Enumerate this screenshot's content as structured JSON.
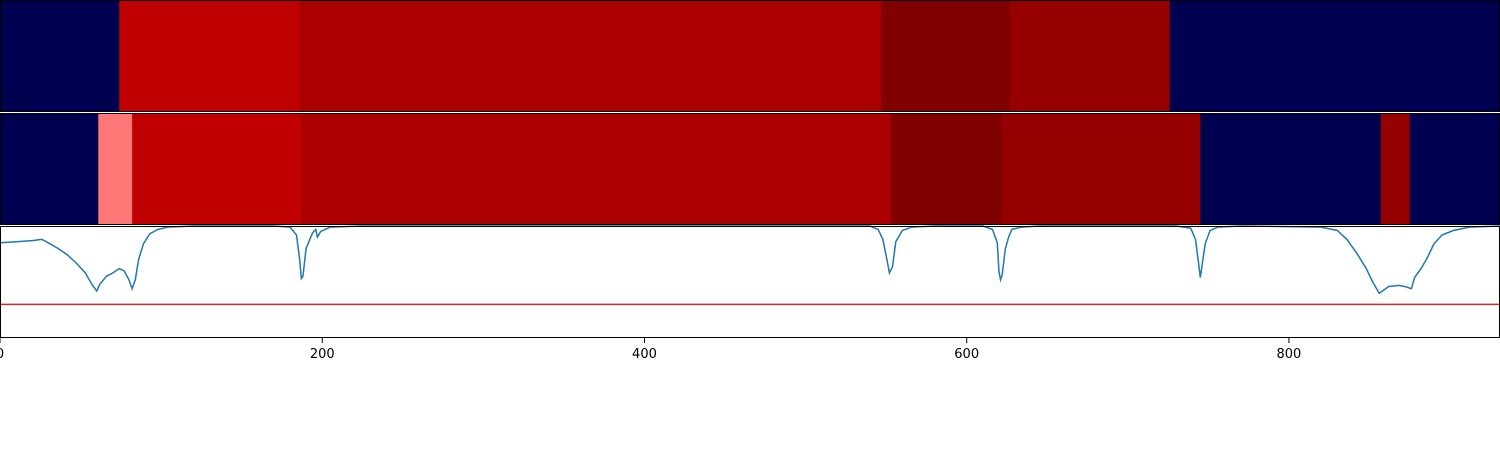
{
  "chart_data": {
    "type": "segmentation-timeline",
    "x_range": [
      0,
      931
    ],
    "x_ticks": [
      0,
      200,
      400,
      600,
      800
    ],
    "tracks": [
      {
        "segments": [
          {
            "start": 0,
            "end": 74,
            "color": "#000050"
          },
          {
            "start": 74,
            "end": 186,
            "color": "#c00000"
          },
          {
            "start": 186,
            "end": 547,
            "color": "#aa0000"
          },
          {
            "start": 547,
            "end": 627,
            "color": "#800000"
          },
          {
            "start": 627,
            "end": 726,
            "color": "#950000"
          },
          {
            "start": 726,
            "end": 931,
            "color": "#000050"
          }
        ]
      },
      {
        "segments": [
          {
            "start": 0,
            "end": 61,
            "color": "#000050"
          },
          {
            "start": 61,
            "end": 82,
            "color": "#ff7878"
          },
          {
            "start": 82,
            "end": 187,
            "color": "#c00000"
          },
          {
            "start": 187,
            "end": 553,
            "color": "#aa0000"
          },
          {
            "start": 553,
            "end": 622,
            "color": "#800000"
          },
          {
            "start": 622,
            "end": 745,
            "color": "#950000"
          },
          {
            "start": 745,
            "end": 857,
            "color": "#000050"
          },
          {
            "start": 857,
            "end": 875,
            "color": "#950000"
          },
          {
            "start": 875,
            "end": 931,
            "color": "#000050"
          }
        ]
      }
    ],
    "curve": {
      "y_range": [
        0,
        1
      ],
      "threshold": 0.3,
      "line_color": "#1f77b4",
      "threshold_color": "#d62728",
      "points": [
        [
          0,
          0.85
        ],
        [
          10,
          0.86
        ],
        [
          20,
          0.87
        ],
        [
          26,
          0.88
        ],
        [
          30,
          0.85
        ],
        [
          36,
          0.8
        ],
        [
          42,
          0.74
        ],
        [
          48,
          0.66
        ],
        [
          53,
          0.58
        ],
        [
          57,
          0.48
        ],
        [
          60,
          0.42
        ],
        [
          62,
          0.48
        ],
        [
          66,
          0.55
        ],
        [
          70,
          0.58
        ],
        [
          74,
          0.62
        ],
        [
          77,
          0.6
        ],
        [
          80,
          0.52
        ],
        [
          82,
          0.44
        ],
        [
          84,
          0.52
        ],
        [
          86,
          0.7
        ],
        [
          89,
          0.84
        ],
        [
          93,
          0.93
        ],
        [
          98,
          0.97
        ],
        [
          104,
          0.99
        ],
        [
          120,
          1.0
        ],
        [
          170,
          1.0
        ],
        [
          180,
          0.99
        ],
        [
          184,
          0.92
        ],
        [
          186,
          0.7
        ],
        [
          187,
          0.53
        ],
        [
          188,
          0.55
        ],
        [
          190,
          0.8
        ],
        [
          194,
          0.94
        ],
        [
          196,
          0.97
        ],
        [
          197,
          0.9
        ],
        [
          199,
          0.95
        ],
        [
          205,
          0.99
        ],
        [
          225,
          1.0
        ],
        [
          540,
          1.0
        ],
        [
          545,
          0.97
        ],
        [
          548,
          0.88
        ],
        [
          551,
          0.66
        ],
        [
          552,
          0.58
        ],
        [
          554,
          0.64
        ],
        [
          556,
          0.86
        ],
        [
          560,
          0.96
        ],
        [
          566,
          0.99
        ],
        [
          580,
          1.0
        ],
        [
          610,
          1.0
        ],
        [
          616,
          0.97
        ],
        [
          619,
          0.85
        ],
        [
          620,
          0.6
        ],
        [
          621,
          0.52
        ],
        [
          622,
          0.56
        ],
        [
          624,
          0.8
        ],
        [
          626,
          0.9
        ],
        [
          628,
          0.97
        ],
        [
          634,
          0.99
        ],
        [
          645,
          1.0
        ],
        [
          730,
          1.0
        ],
        [
          739,
          0.98
        ],
        [
          742,
          0.88
        ],
        [
          744,
          0.66
        ],
        [
          745,
          0.54
        ],
        [
          746,
          0.64
        ],
        [
          748,
          0.84
        ],
        [
          751,
          0.96
        ],
        [
          756,
          0.99
        ],
        [
          770,
          1.0
        ],
        [
          820,
          0.99
        ],
        [
          830,
          0.96
        ],
        [
          836,
          0.88
        ],
        [
          842,
          0.76
        ],
        [
          848,
          0.62
        ],
        [
          852,
          0.5
        ],
        [
          856,
          0.4
        ],
        [
          858,
          0.42
        ],
        [
          862,
          0.46
        ],
        [
          868,
          0.47
        ],
        [
          872,
          0.46
        ],
        [
          876,
          0.44
        ],
        [
          878,
          0.54
        ],
        [
          882,
          0.62
        ],
        [
          886,
          0.72
        ],
        [
          890,
          0.84
        ],
        [
          895,
          0.92
        ],
        [
          902,
          0.96
        ],
        [
          912,
          0.99
        ],
        [
          931,
          1.0
        ]
      ]
    }
  }
}
